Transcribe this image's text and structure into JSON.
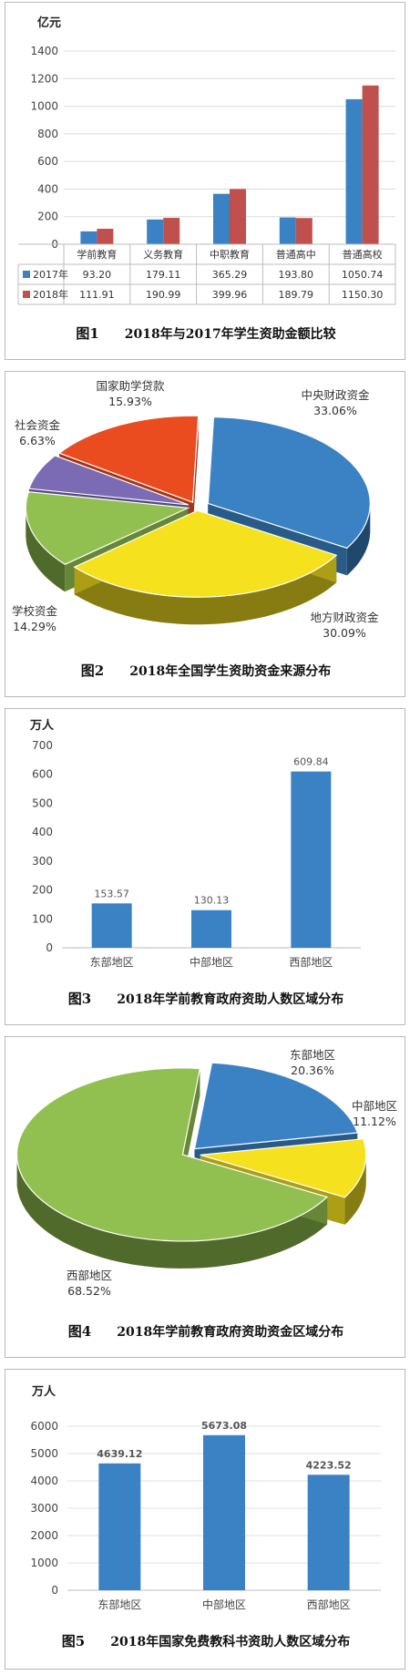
{
  "colors": {
    "blue": "#3a82c4",
    "red": "#c0504d",
    "yellow": "#f5e11e",
    "green": "#92c050",
    "purple": "#7b6bb4",
    "orange": "#ea4b1f"
  },
  "chart_data": [
    {
      "type": "bar",
      "figure": "图1",
      "title": "2018年与2017年学生资助金额比较",
      "unit": "亿元",
      "ylim": [
        0,
        1400
      ],
      "yticks": [
        0,
        200,
        400,
        600,
        800,
        1000,
        1200,
        1400
      ],
      "categories": [
        "学前教育",
        "义务教育",
        "中职教育",
        "普通高中",
        "普通高校"
      ],
      "series": [
        {
          "name": "2017年",
          "values": [
            93.2,
            179.11,
            365.29,
            193.8,
            1050.74
          ],
          "labels": [
            "93.20",
            "179.11",
            "365.29",
            "193.80",
            "1050.74"
          ]
        },
        {
          "name": "2018年",
          "values": [
            111.91,
            190.99,
            399.96,
            189.79,
            1150.3
          ],
          "labels": [
            "111.91",
            "190.99",
            "399.96",
            "189.79",
            "1150.30"
          ]
        }
      ]
    },
    {
      "type": "pie",
      "figure": "图2",
      "title": "2018年全国学生资助资金来源分布",
      "slices": [
        {
          "name": "中央财政资金",
          "value": 33.06,
          "label": "33.06%"
        },
        {
          "name": "地方财政资金",
          "value": 30.09,
          "label": "30.09%"
        },
        {
          "name": "学校资金",
          "value": 14.29,
          "label": "14.29%"
        },
        {
          "name": "社会资金",
          "value": 6.63,
          "label": "6.63%"
        },
        {
          "name": "国家助学贷款",
          "value": 15.93,
          "label": "15.93%"
        }
      ]
    },
    {
      "type": "bar",
      "figure": "图3",
      "title": "2018年学前教育政府资助人数区域分布",
      "unit": "万人",
      "ylim": [
        0,
        700
      ],
      "yticks": [
        0,
        100,
        200,
        300,
        400,
        500,
        600,
        700
      ],
      "categories": [
        "东部地区",
        "中部地区",
        "西部地区"
      ],
      "values": [
        153.57,
        130.13,
        609.84
      ],
      "labels": [
        "153.57",
        "130.13",
        "609.84"
      ]
    },
    {
      "type": "pie",
      "figure": "图4",
      "title": "2018年学前教育政府资助资金区域分布",
      "slices": [
        {
          "name": "东部地区",
          "value": 20.36,
          "label": "20.36%"
        },
        {
          "name": "中部地区",
          "value": 11.12,
          "label": "11.12%"
        },
        {
          "name": "西部地区",
          "value": 68.52,
          "label": "68.52%"
        }
      ]
    },
    {
      "type": "bar",
      "figure": "图5",
      "title": "2018年国家免费教科书资助人数区域分布",
      "unit": "万人",
      "ylim": [
        0,
        6000
      ],
      "yticks": [
        0,
        1000,
        2000,
        3000,
        4000,
        5000,
        6000
      ],
      "categories": [
        "东部地区",
        "中部地区",
        "西部地区"
      ],
      "values": [
        4639.12,
        5673.08,
        4223.52
      ],
      "labels": [
        "4639.12",
        "5673.08",
        "4223.52"
      ]
    }
  ]
}
